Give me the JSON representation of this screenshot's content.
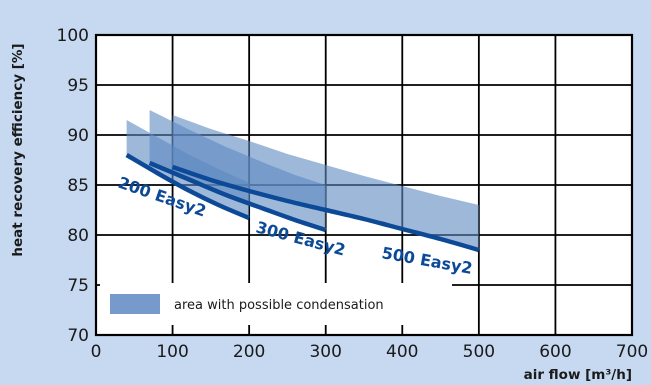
{
  "chart_data": {
    "type": "area",
    "xlabel": "air flow [m³/h]",
    "ylabel": "heat recovery efficiency [%]",
    "xlim": [
      0,
      700
    ],
    "ylim": [
      70,
      100
    ],
    "xticks": [
      0,
      100,
      200,
      300,
      400,
      500,
      600,
      700
    ],
    "yticks": [
      70,
      75,
      80,
      85,
      90,
      95,
      100
    ],
    "grid": true,
    "legend": {
      "position": "bottom-left",
      "label": "area with possible condensation"
    },
    "colors": {
      "line": "#0c4a97",
      "area": "#5e88c2",
      "background": "#c6d9f1",
      "plot": "#ffffff"
    },
    "series": [
      {
        "name": "200 Easy2",
        "x": [
          40,
          80,
          120,
          160,
          200
        ],
        "y": [
          88.0,
          86.2,
          84.5,
          83.0,
          81.7
        ],
        "area_upper": [
          91.5,
          89.8,
          88.1,
          86.6,
          85.2
        ]
      },
      {
        "name": "300 Easy2",
        "x": [
          70,
          120,
          170,
          220,
          260,
          300
        ],
        "y": [
          87.2,
          85.6,
          84.0,
          82.6,
          81.5,
          80.5
        ],
        "area_upper": [
          92.5,
          90.6,
          88.8,
          87.2,
          86.0,
          85.0
        ]
      },
      {
        "name": "500 Easy2",
        "x": [
          100,
          150,
          200,
          250,
          300,
          350,
          400,
          450,
          500
        ],
        "y": [
          86.8,
          85.5,
          84.4,
          83.4,
          82.5,
          81.6,
          80.6,
          79.6,
          78.5
        ],
        "area_upper": [
          92.0,
          90.6,
          89.4,
          88.1,
          87.0,
          85.9,
          84.9,
          83.9,
          83.0
        ]
      }
    ]
  }
}
